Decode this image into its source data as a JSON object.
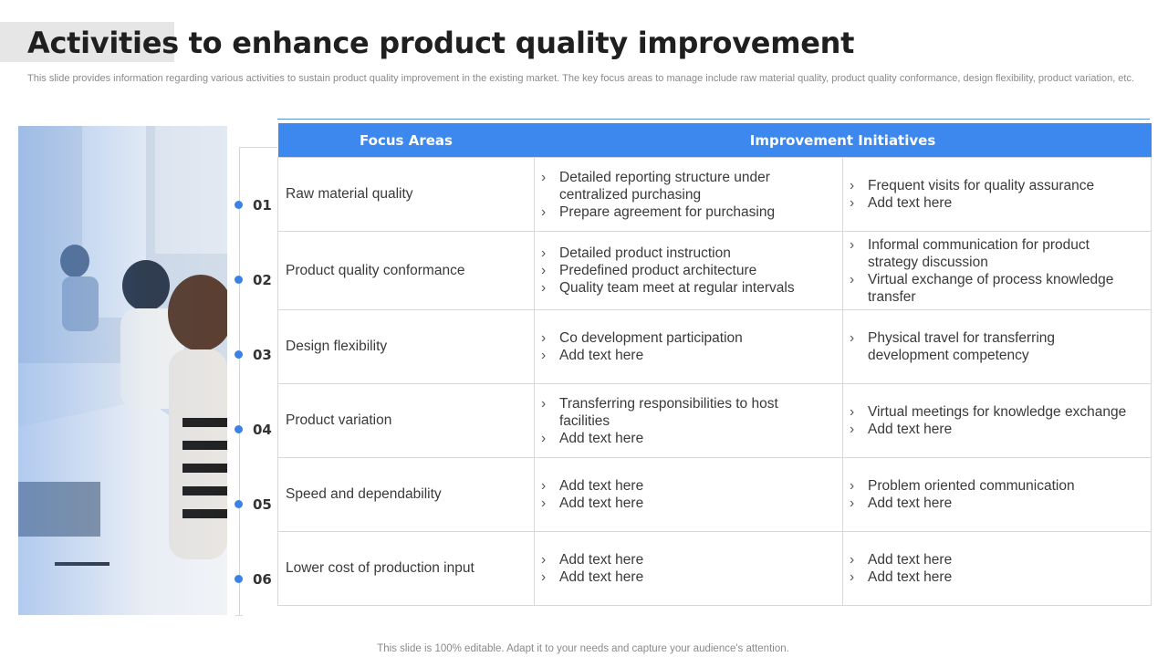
{
  "slide": {
    "title": "Activities to enhance product quality improvement",
    "subtitle": "This slide provides information regarding various activities to sustain product quality improvement in the existing market. The key focus areas to manage include raw material quality, product quality conformance, design flexibility, product variation, etc.",
    "footer": "This slide is 100% editable. Adapt it to your needs and capture your audience's attention.",
    "accent_color": "#3c88ee"
  },
  "table": {
    "header_focus": "Focus Areas",
    "header_initiatives": "Improvement Initiatives",
    "rows": [
      {
        "step": "01",
        "focus": "Raw material quality",
        "col1": [
          "Detailed reporting structure  under centralized purchasing",
          "Prepare agreement for purchasing"
        ],
        "col2": [
          "Frequent visits for quality assurance",
          "Add text here"
        ]
      },
      {
        "step": "02",
        "focus": "Product quality  conformance",
        "col1": [
          "Detailed product instruction",
          "Predefined product architecture",
          "Quality team meet at regular intervals"
        ],
        "col2": [
          "Informal  communication for product strategy discussion",
          "Virtual exchange  of process knowledge transfer"
        ]
      },
      {
        "step": "03",
        "focus": "Design flexibility",
        "col1": [
          "Co development participation",
          "Add text here"
        ],
        "col2": [
          "Physical travel for transferring development  competency"
        ]
      },
      {
        "step": "04",
        "focus": "Product variation",
        "col1": [
          "Transferring  responsibilities to host facilities",
          "Add text here"
        ],
        "col2": [
          "Virtual meetings for knowledge exchange",
          "Add text here"
        ]
      },
      {
        "step": "05",
        "focus": "Speed and dependability",
        "col1": [
          "Add text here",
          "Add text here"
        ],
        "col2": [
          "Problem oriented communication",
          "Add text here"
        ]
      },
      {
        "step": "06",
        "focus": "Lower cost of production input",
        "col1": [
          "Add text here",
          "Add text here"
        ],
        "col2": [
          "Add text here",
          "Add text here"
        ]
      }
    ]
  }
}
